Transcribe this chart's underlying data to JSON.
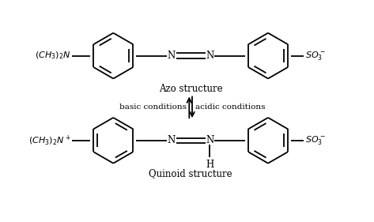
{
  "fig_width": 4.73,
  "fig_height": 2.81,
  "dpi": 100,
  "bg_color": "#ffffff",
  "line_color": "#000000",
  "line_width": 1.3,
  "title_fontsize": 8.5,
  "label_fontsize": 8.0,
  "arrow_label_fontsize": 7.5,
  "azo_label": "Azo structure",
  "quinoid_label": "Quinoid structure",
  "basic_label": "basic conditions",
  "acidic_label": "acidic conditions",
  "h_label": "H"
}
